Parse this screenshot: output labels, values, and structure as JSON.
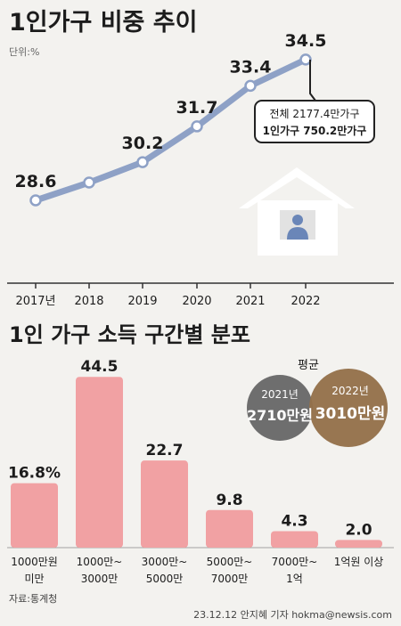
{
  "line_chart": {
    "title": "1인가구 비중 추이",
    "unit_note": "단위:%",
    "callout_total": "전체 2177.4만가구",
    "callout_single": "1인가구 750.2만가구",
    "colors": {
      "line": "#8ea1c6",
      "marker_stroke": "#8ea1c6",
      "marker_fill": "#ffffff",
      "house": "#ffffff",
      "person": "#6a86b8"
    }
  },
  "bar_chart": {
    "title": "1인 가구 소득 구간별 분포",
    "bar_color": "#f1a1a3",
    "average": {
      "title": "평균",
      "y2021_label": "2021년",
      "y2021_value": "2710만원",
      "y2022_label": "2022년",
      "y2022_value": "3010만원",
      "color_2021": "#6e6e6e",
      "color_2022": "#94704a"
    }
  },
  "chart_data": [
    {
      "type": "line",
      "title": "1인가구 비중 추이",
      "unit": "%",
      "categories": [
        "2017년",
        "2018",
        "2019",
        "2020",
        "2021",
        "2022"
      ],
      "values": [
        28.6,
        null,
        30.2,
        31.7,
        33.4,
        34.5
      ],
      "value_labels": [
        "28.6",
        "",
        "30.2",
        "31.7",
        "33.4",
        "34.5"
      ],
      "grid": false
    },
    {
      "type": "bar",
      "title": "1인 가구 소득 구간별 분포",
      "categories": [
        "1000만원\n미만",
        "1000만~\n3000만",
        "3000만~\n5000만",
        "5000만~\n7000만",
        "7000만~\n1억",
        "1억원 이상"
      ],
      "values": [
        16.8,
        44.5,
        22.7,
        9.8,
        4.3,
        2.0
      ],
      "value_labels": [
        "16.8%",
        "44.5",
        "22.7",
        "9.8",
        "4.3",
        "2.0"
      ],
      "grid": false
    }
  ],
  "footer": {
    "source": "자료:통계청",
    "credit": "23.12.12 안지혜 기자 hokma@newsis.com"
  }
}
